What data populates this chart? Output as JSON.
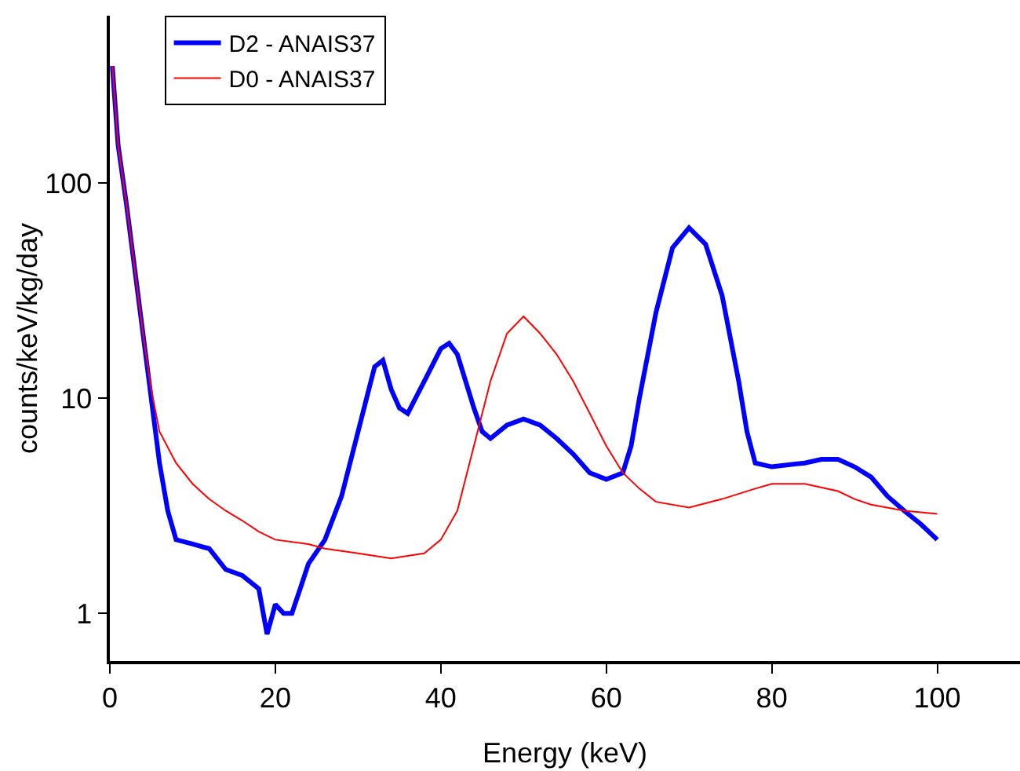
{
  "chart_data": {
    "type": "line",
    "xlabel": "Energy (keV)",
    "ylabel": "counts/keV/kg/day",
    "log": "y",
    "xlim": [
      0,
      110
    ],
    "ylim": [
      0.6,
      600
    ],
    "xticks": [
      0,
      20,
      40,
      60,
      80,
      100
    ],
    "yticks": [
      1,
      10,
      100
    ],
    "grid": false,
    "legend": "top left",
    "marker": "none",
    "line_style": "solid",
    "series": [
      {
        "name": "D2 - ANAIS37",
        "color": "#0000ff",
        "x": [
          0.3,
          1,
          2,
          3,
          4,
          5,
          6,
          7,
          8,
          10,
          12,
          14,
          16,
          18,
          19,
          20,
          21,
          22,
          23,
          24,
          26,
          28,
          30,
          32,
          33,
          34,
          35,
          36,
          38,
          40,
          41,
          42,
          44,
          45,
          46,
          48,
          50,
          52,
          54,
          56,
          58,
          60,
          62,
          63,
          64,
          66,
          68,
          70,
          72,
          74,
          76,
          77,
          78,
          80,
          84,
          86,
          88,
          90,
          92,
          94,
          96,
          98,
          100
        ],
        "values": [
          350,
          150,
          80,
          40,
          20,
          10,
          5,
          3,
          2.2,
          2.1,
          2,
          1.6,
          1.5,
          1.3,
          0.8,
          1.1,
          1,
          1,
          1.3,
          1.7,
          2.2,
          3.5,
          7,
          14,
          15,
          11,
          9,
          8.5,
          12,
          17,
          18,
          16,
          9,
          7,
          6.5,
          7.5,
          8,
          7.5,
          6.5,
          5.5,
          4.5,
          4.2,
          4.5,
          6,
          10,
          25,
          50,
          62,
          52,
          30,
          12,
          7,
          5,
          4.8,
          5,
          5.2,
          5.2,
          4.8,
          4.3,
          3.5,
          3,
          2.6,
          2.2
        ]
      },
      {
        "name": "D0 - ANAIS37",
        "color": "#ff0000",
        "x": [
          0.3,
          1,
          2,
          3,
          4,
          5,
          6,
          8,
          10,
          12,
          14,
          16,
          18,
          20,
          24,
          26,
          30,
          34,
          38,
          40,
          42,
          44,
          46,
          48,
          50,
          52,
          54,
          56,
          58,
          60,
          62,
          64,
          66,
          70,
          74,
          78,
          80,
          84,
          88,
          90,
          92,
          96,
          100
        ],
        "values": [
          350,
          150,
          80,
          40,
          20,
          11,
          7,
          5,
          4,
          3.4,
          3,
          2.7,
          2.4,
          2.2,
          2.1,
          2,
          1.9,
          1.8,
          1.9,
          2.2,
          3,
          6,
          12,
          20,
          24,
          20,
          16,
          12,
          8.5,
          6,
          4.5,
          3.8,
          3.3,
          3.1,
          3.4,
          3.8,
          4,
          4,
          3.7,
          3.4,
          3.2,
          3,
          2.9
        ]
      }
    ]
  }
}
